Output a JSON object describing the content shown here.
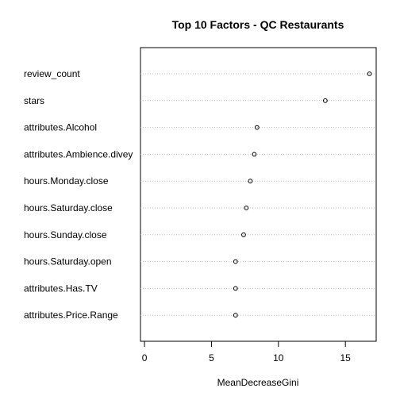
{
  "chart_data": {
    "type": "scatter",
    "title": "Top 10 Factors - QC Restaurants",
    "xlabel": "MeanDecreaseGini",
    "ylabel": "",
    "xlim": [
      -0.3,
      17.3
    ],
    "xticks": [
      0,
      5,
      10,
      15
    ],
    "grid": "dotted horizontal lines per factor",
    "categories": [
      "review_count",
      "stars",
      "attributes.Alcohol",
      "attributes.Ambience.divey",
      "hours.Monday.close",
      "hours.Saturday.close",
      "hours.Sunday.close",
      "hours.Saturday.open",
      "attributes.Has.TV",
      "attributes.Price.Range"
    ],
    "values": [
      16.8,
      13.5,
      8.4,
      8.2,
      7.9,
      7.6,
      7.4,
      6.8,
      6.8,
      6.8
    ]
  }
}
